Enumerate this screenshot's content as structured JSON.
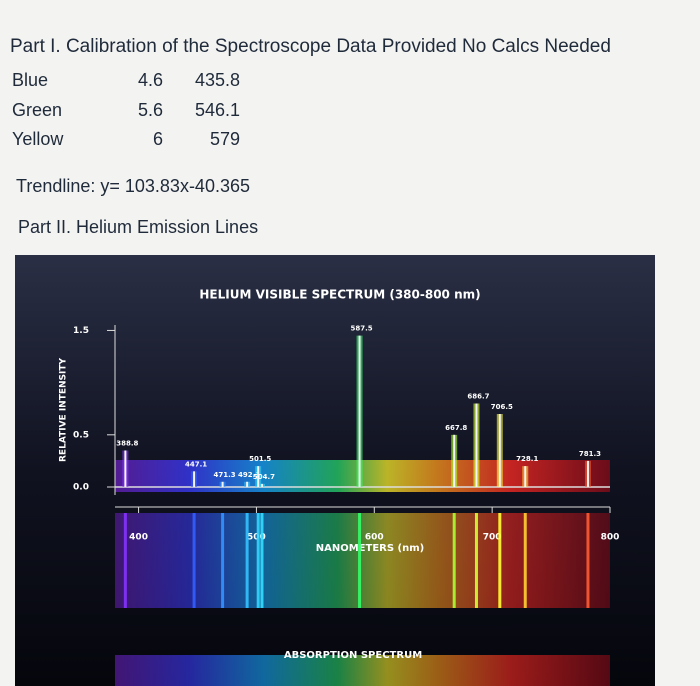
{
  "header": {
    "title": "Part I. Calibration of the Spectroscope Data Provided No Calcs Needed"
  },
  "table": {
    "rows": [
      [
        "Blue",
        "4.6",
        "435.8"
      ],
      [
        "Green",
        "5.6",
        "546.1"
      ],
      [
        "Yellow",
        "6",
        "579"
      ]
    ]
  },
  "trendline": "Trendline: y= 103.83x-40.365",
  "part2": "Part II. Helium Emission Lines",
  "figure": {
    "type": "spectrum",
    "title": "HELIUM VISIBLE SPECTRUM (380-800 nm)",
    "y_label": "RELATIVE INTENSITY",
    "x_label": "NANOMETERS (nm)",
    "bottom_label": "ABSORPTION SPECTRUM",
    "xlim": [
      380,
      800
    ],
    "xticks": [
      400,
      500,
      600,
      700,
      800
    ],
    "ylim": [
      0,
      1.6
    ],
    "yticks": [
      1.5,
      0.5,
      {
        "value": 0,
        "label": "0.0"
      }
    ],
    "peaks": [
      {
        "wavelength": 388.8,
        "intensity": 0.35
      },
      {
        "wavelength": 447.1,
        "intensity": 0.15
      },
      {
        "wavelength": 471.3,
        "intensity": 0.05
      },
      {
        "wavelength": 492.1,
        "intensity": 0.05
      },
      {
        "wavelength": 501.5,
        "intensity": 0.2
      },
      {
        "wavelength": 504.7,
        "intensity": 0.03
      },
      {
        "wavelength": 587.5,
        "intensity": 1.45
      },
      {
        "wavelength": 667.8,
        "intensity": 0.5
      },
      {
        "wavelength": 686.7,
        "intensity": 0.8
      },
      {
        "wavelength": 706.5,
        "intensity": 0.7
      },
      {
        "wavelength": 728.1,
        "intensity": 0.2
      },
      {
        "wavelength": 781.3,
        "intensity": 0.25
      }
    ]
  }
}
